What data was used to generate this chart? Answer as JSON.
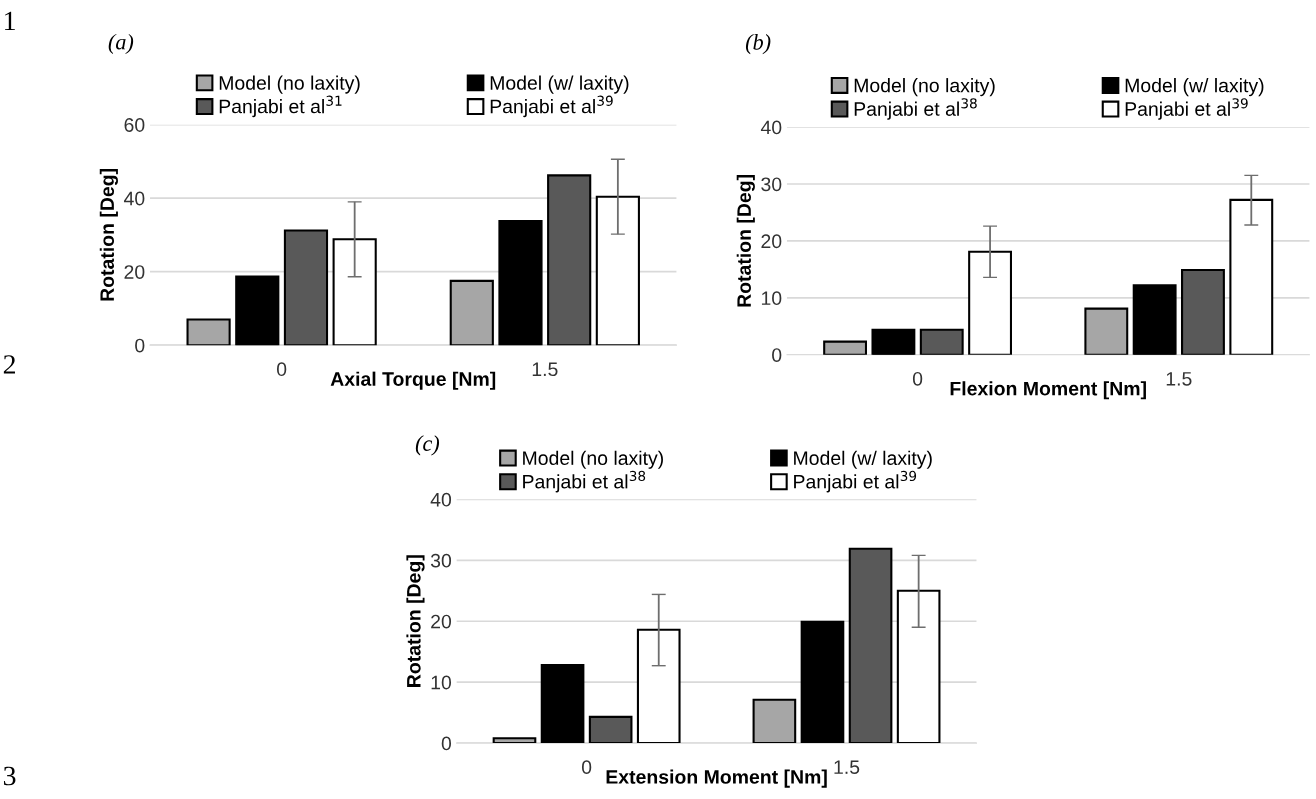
{
  "chart_data": [
    {
      "type": "bar",
      "title": "(a)",
      "xlabel": "Axial Torque [Nm]",
      "ylabel": "Rotation [Deg]",
      "categories": [
        "0",
        "1.5"
      ],
      "ylim": [
        0,
        60
      ],
      "yticks": [
        0,
        20,
        40,
        60
      ],
      "grid": "y",
      "legend": "top",
      "annotations": [
        "1",
        "2"
      ],
      "series": [
        {
          "name": "Model (no laxity)",
          "color": "#a6a6a6",
          "values": [
            7,
            17.5
          ]
        },
        {
          "name": "Model (w/ laxity)",
          "color": "#000000",
          "values": [
            18.7,
            33.8
          ]
        },
        {
          "name": "Panjabi et al$^{31}$",
          "color": "#595959",
          "values": [
            31.2,
            46.2
          ]
        },
        {
          "name": "Panjabi et al$^{39}$",
          "color": "#ffffff",
          "values": [
            28.8,
            40.4
          ],
          "errors": [
            [
              18.6,
              39
            ],
            [
              30.2,
              50.6
            ]
          ]
        }
      ]
    },
    {
      "type": "bar",
      "title": "(b)",
      "xlabel": "Flexion Moment [Nm]",
      "ylabel": "Rotation [Deg]",
      "categories": [
        "0",
        "1.5"
      ],
      "ylim": [
        0,
        40
      ],
      "yticks": [
        0,
        10,
        20,
        30,
        40
      ],
      "grid": "y",
      "legend": "top",
      "series": [
        {
          "name": "Model (no laxity)",
          "color": "#a6a6a6",
          "values": [
            2.3,
            8.1
          ]
        },
        {
          "name": "Model (w/ laxity)",
          "color": "#000000",
          "values": [
            4.4,
            12.2
          ]
        },
        {
          "name": "Panjabi et al$^{38}$",
          "color": "#595959",
          "values": [
            4.4,
            14.9
          ]
        },
        {
          "name": "Panjabi et al$^{39}$",
          "color": "#ffffff",
          "values": [
            18.1,
            27.2
          ],
          "errors": [
            [
              13.6,
              22.6
            ],
            [
              22.8,
              31.5
            ]
          ]
        }
      ]
    },
    {
      "type": "bar",
      "title": "(c)",
      "xlabel": "Extension Moment [Nm]",
      "ylabel": "Rotation [Deg]",
      "categories": [
        "0",
        "1.5"
      ],
      "ylim": [
        0,
        40
      ],
      "yticks": [
        0,
        10,
        20,
        30,
        40
      ],
      "grid": "y",
      "legend": "top",
      "annotations": [
        "3"
      ],
      "series": [
        {
          "name": "Model (no laxity)",
          "color": "#a6a6a6",
          "values": [
            0.8,
            7.1
          ]
        },
        {
          "name": "Model (w/ laxity)",
          "color": "#000000",
          "values": [
            12.8,
            19.9
          ]
        },
        {
          "name": "Panjabi et al$^{38}$",
          "color": "#595959",
          "values": [
            4.3,
            31.9
          ]
        },
        {
          "name": "Panjabi et al$^{39}$",
          "color": "#ffffff",
          "values": [
            18.6,
            25
          ],
          "errors": [
            [
              12.7,
              24.4
            ],
            [
              19,
              30.8
            ]
          ]
        }
      ]
    }
  ]
}
